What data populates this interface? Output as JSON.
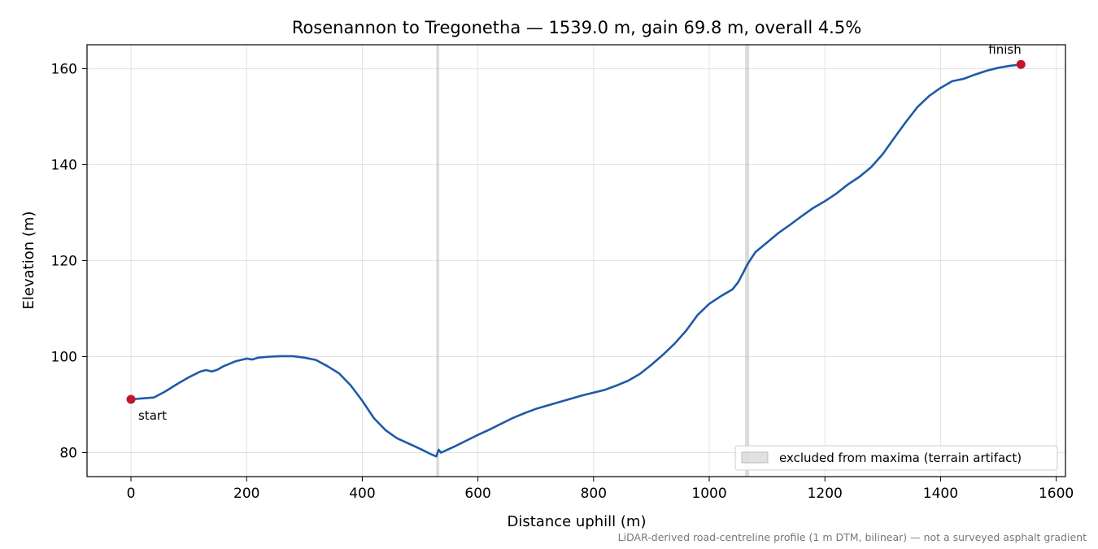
{
  "chart_data": {
    "type": "line",
    "title": "Rosenannon to Tregonetha — 1539.0 m, gain 69.8 m, overall 4.5%",
    "xlabel": "Distance uphill (m)",
    "ylabel": "Elevation (m)",
    "xlim": [
      -76,
      1616
    ],
    "ylim": [
      75,
      165
    ],
    "xticks": [
      0,
      200,
      400,
      600,
      800,
      1000,
      1200,
      1400,
      1600
    ],
    "yticks": [
      80,
      100,
      120,
      140,
      160
    ],
    "grid": true,
    "legend": {
      "placement": "lower-right",
      "entries": [
        "excluded from maxima (terrain artifact)"
      ]
    },
    "footnote": "LiDAR-derived road-centreline profile (1 m DTM, bilinear) — not a surveyed asphalt gradient",
    "colors": {
      "line": "#1f5aa8",
      "marker": "#c0182a",
      "excluded": "#bdbdbd"
    },
    "series": [
      {
        "x": [
          0,
          20,
          40,
          60,
          80,
          100,
          120,
          130,
          140,
          150,
          160,
          180,
          200,
          210,
          220,
          240,
          260,
          280,
          300,
          320,
          340,
          360,
          380,
          400,
          420,
          440,
          460,
          480,
          500,
          520,
          528,
          532,
          536,
          540,
          560,
          580,
          600,
          620,
          640,
          660,
          680,
          700,
          720,
          740,
          760,
          780,
          800,
          820,
          840,
          860,
          880,
          900,
          920,
          940,
          960,
          980,
          1000,
          1020,
          1040,
          1050,
          1060,
          1065,
          1070,
          1080,
          1100,
          1120,
          1140,
          1160,
          1180,
          1200,
          1220,
          1240,
          1260,
          1280,
          1300,
          1320,
          1340,
          1360,
          1380,
          1400,
          1420,
          1440,
          1460,
          1480,
          1500,
          1520,
          1539
        ],
        "y": [
          91.1,
          91.3,
          91.5,
          92.8,
          94.3,
          95.7,
          96.9,
          97.2,
          96.9,
          97.3,
          98.0,
          99.0,
          99.6,
          99.4,
          99.8,
          100.0,
          100.1,
          100.1,
          99.8,
          99.3,
          98.0,
          96.5,
          94.0,
          90.8,
          87.2,
          84.7,
          83.0,
          81.9,
          80.8,
          79.6,
          79.2,
          80.6,
          80.0,
          80.2,
          81.3,
          82.5,
          83.7,
          84.8,
          86.0,
          87.2,
          88.2,
          89.1,
          89.8,
          90.5,
          91.2,
          91.9,
          92.5,
          93.1,
          94.0,
          95.0,
          96.4,
          98.3,
          100.4,
          102.7,
          105.4,
          108.7,
          111.0,
          112.6,
          114.0,
          115.5,
          117.8,
          119.0,
          120.0,
          121.8,
          123.8,
          125.8,
          127.5,
          129.3,
          131.0,
          132.4,
          134.0,
          135.9,
          137.5,
          139.5,
          142.2,
          145.6,
          148.9,
          152.0,
          154.3,
          156.0,
          157.4,
          157.9,
          158.8,
          159.6,
          160.2,
          160.6,
          160.9
        ]
      }
    ],
    "excluded_bands": [
      {
        "x0": 528,
        "x1": 533
      },
      {
        "x0": 1062,
        "x1": 1069
      }
    ],
    "annotations": [
      {
        "text": "start",
        "x": 0,
        "y": 91.1
      },
      {
        "text": "finish",
        "x": 1539,
        "y": 160.9
      }
    ]
  }
}
